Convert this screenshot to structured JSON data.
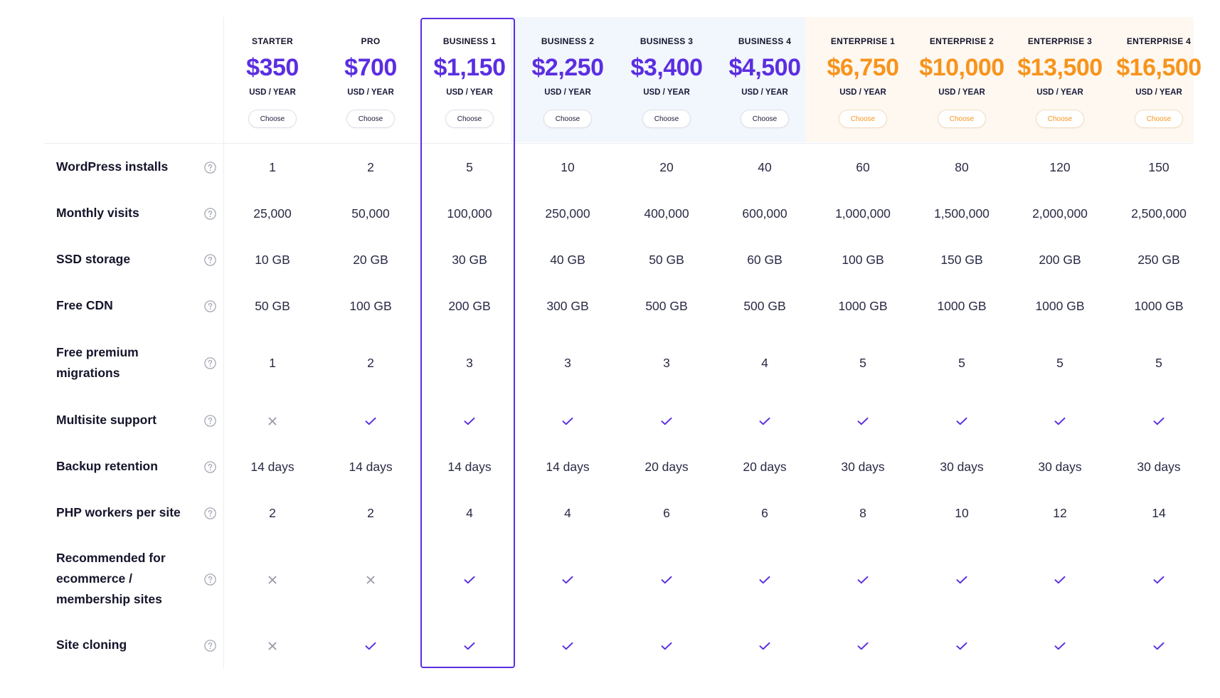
{
  "plans": [
    {
      "name": "STARTER",
      "price": "$350",
      "period": "USD / YEAR",
      "button": "Choose",
      "tier": "standard"
    },
    {
      "name": "PRO",
      "price": "$700",
      "period": "USD / YEAR",
      "button": "Choose",
      "tier": "standard"
    },
    {
      "name": "BUSINESS 1",
      "price": "$1,150",
      "period": "USD / YEAR",
      "button": "Choose",
      "tier": "business"
    },
    {
      "name": "BUSINESS 2",
      "price": "$2,250",
      "period": "USD / YEAR",
      "button": "Choose",
      "tier": "business"
    },
    {
      "name": "BUSINESS 3",
      "price": "$3,400",
      "period": "USD / YEAR",
      "button": "Choose",
      "tier": "business"
    },
    {
      "name": "BUSINESS 4",
      "price": "$4,500",
      "period": "USD / YEAR",
      "button": "Choose",
      "tier": "business"
    },
    {
      "name": "ENTERPRISE 1",
      "price": "$6,750",
      "period": "USD / YEAR",
      "button": "Choose",
      "tier": "enterprise"
    },
    {
      "name": "ENTERPRISE 2",
      "price": "$10,000",
      "period": "USD / YEAR",
      "button": "Choose",
      "tier": "enterprise"
    },
    {
      "name": "ENTERPRISE 3",
      "price": "$13,500",
      "period": "USD / YEAR",
      "button": "Choose",
      "tier": "enterprise"
    },
    {
      "name": "ENTERPRISE 4",
      "price": "$16,500",
      "period": "USD / YEAR",
      "button": "Choose",
      "tier": "enterprise"
    }
  ],
  "highlighted_plan": "BUSINESS 1",
  "features": [
    {
      "label": "WordPress installs",
      "values": [
        "1",
        "2",
        "5",
        "10",
        "20",
        "40",
        "60",
        "80",
        "120",
        "150"
      ]
    },
    {
      "label": "Monthly visits",
      "values": [
        "25,000",
        "50,000",
        "100,000",
        "250,000",
        "400,000",
        "600,000",
        "1,000,000",
        "1,500,000",
        "2,000,000",
        "2,500,000"
      ]
    },
    {
      "label": "SSD storage",
      "values": [
        "10 GB",
        "20 GB",
        "30 GB",
        "40 GB",
        "50 GB",
        "60 GB",
        "100 GB",
        "150 GB",
        "200 GB",
        "250 GB"
      ]
    },
    {
      "label": "Free CDN",
      "values": [
        "50 GB",
        "100 GB",
        "200 GB",
        "300 GB",
        "500 GB",
        "500 GB",
        "1000 GB",
        "1000 GB",
        "1000 GB",
        "1000 GB"
      ]
    },
    {
      "label": "Free premium migrations",
      "values": [
        "1",
        "2",
        "3",
        "3",
        "3",
        "4",
        "5",
        "5",
        "5",
        "5"
      ]
    },
    {
      "label": "Multisite support",
      "values": [
        false,
        true,
        true,
        true,
        true,
        true,
        true,
        true,
        true,
        true
      ]
    },
    {
      "label": "Backup retention",
      "values": [
        "14 days",
        "14 days",
        "14 days",
        "14 days",
        "20 days",
        "20 days",
        "30 days",
        "30 days",
        "30 days",
        "30 days"
      ]
    },
    {
      "label": "PHP workers per site",
      "values": [
        "2",
        "2",
        "4",
        "4",
        "6",
        "6",
        "8",
        "10",
        "12",
        "14"
      ]
    },
    {
      "label": "Recommended for ecommerce / membership sites",
      "values": [
        false,
        false,
        true,
        true,
        true,
        true,
        true,
        true,
        true,
        true
      ]
    },
    {
      "label": "Site cloning",
      "values": [
        false,
        true,
        true,
        true,
        true,
        true,
        true,
        true,
        true,
        true
      ]
    }
  ],
  "icons": {
    "help": "question-circle-icon",
    "yes": "check-icon",
    "no": "cross-icon"
  },
  "colors": {
    "accent": "#5b2ee0",
    "enterprise": "#f7941d",
    "business_bg": "#f2f6fd",
    "enterprise_bg": "#fef8f1",
    "cross": "#9a9aa8"
  }
}
